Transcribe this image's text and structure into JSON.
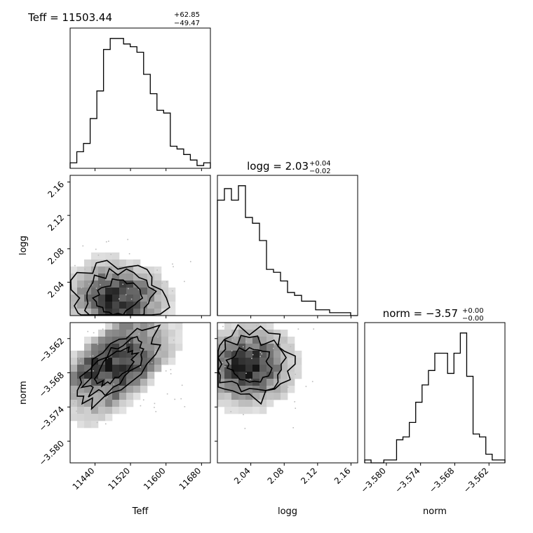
{
  "chart_data": {
    "type": "corner",
    "parameters": [
      "Teff",
      "logg",
      "norm"
    ],
    "titles": [
      {
        "label": "Teff = 11503.44",
        "sup": "+62.85",
        "sub": "−49.47"
      },
      {
        "label": "logg = 2.03",
        "sup": "+0.04",
        "sub": "−0.02"
      },
      {
        "label": "norm = −3.57",
        "sup": "+0.00",
        "sub": "−0.00"
      }
    ],
    "xlabels": [
      "Teff",
      "logg",
      "norm"
    ],
    "ylabels": [
      "",
      "logg",
      "norm"
    ],
    "ranges": [
      [
        11384,
        11700
      ],
      [
        2.0,
        2.168
      ],
      [
        -3.5838,
        -3.5592
      ]
    ],
    "ticks": {
      "Teff": {
        "values": [
          11440,
          11520,
          11600,
          11680
        ],
        "labels": [
          "11440",
          "11520",
          "11600",
          "11680"
        ]
      },
      "logg": {
        "values": [
          2.04,
          2.08,
          2.12,
          2.16
        ],
        "labels": [
          "2.04",
          "2.08",
          "2.12",
          "2.16"
        ]
      },
      "norm": {
        "values": [
          -3.58,
          -3.574,
          -3.568,
          -3.562
        ],
        "labels": [
          "−3.580",
          "−3.574",
          "−3.568",
          "−3.562"
        ]
      }
    },
    "histograms": [
      {
        "param": "Teff",
        "counts": [
          2,
          6,
          9,
          18,
          28,
          43,
          47,
          47,
          45,
          44,
          42,
          34,
          27,
          21,
          20,
          8,
          7,
          5,
          3,
          1,
          2
        ]
      },
      {
        "param": "logg",
        "counts": [
          40,
          44,
          40,
          45,
          34,
          32,
          26,
          16,
          15,
          12,
          8,
          7,
          5,
          5,
          2,
          2,
          1,
          1,
          1,
          0
        ]
      },
      {
        "param": "norm",
        "counts": [
          1,
          0,
          0,
          1,
          1,
          8,
          9,
          14,
          21,
          27,
          32,
          38,
          38,
          31,
          38,
          45,
          30,
          10,
          9,
          3,
          1,
          1
        ]
      }
    ],
    "density_peaks": [
      {
        "x_param": "Teff",
        "y_param": "logg",
        "peaks": [
          [
            11490,
            2.015,
            1.0
          ],
          [
            11455,
            2.03,
            0.8
          ],
          [
            11530,
            2.018,
            0.7
          ]
        ]
      },
      {
        "x_param": "Teff",
        "y_param": "norm",
        "peaks": [
          [
            11450,
            -3.5648,
            1.0
          ],
          [
            11490,
            -3.5665,
            0.85
          ],
          [
            11520,
            -3.5693,
            0.75
          ]
        ]
      },
      {
        "x_param": "logg",
        "y_param": "norm",
        "peaks": [
          [
            2.04,
            -3.5685,
            1.0
          ],
          [
            2.03,
            -3.5665,
            0.85
          ],
          [
            2.045,
            -3.5645,
            0.6
          ]
        ]
      }
    ],
    "grid": false
  }
}
